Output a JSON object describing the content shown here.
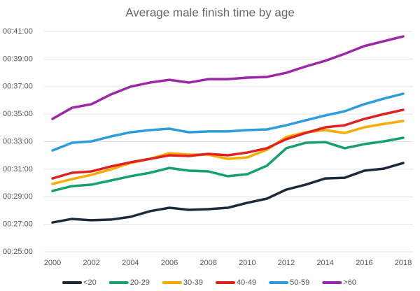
{
  "chart_data": {
    "type": "line",
    "title": "Average male finish time by age",
    "x": [
      2000,
      2001,
      2002,
      2003,
      2004,
      2005,
      2006,
      2007,
      2008,
      2009,
      2010,
      2011,
      2012,
      2013,
      2014,
      2015,
      2016,
      2017,
      2018
    ],
    "xlim": [
      2000,
      2018
    ],
    "xticks": [
      2000,
      2002,
      2004,
      2006,
      2008,
      2010,
      2012,
      2014,
      2016,
      2018
    ],
    "ylim": [
      25,
      41
    ],
    "yticks": [
      {
        "value": 25,
        "label": "00:25:00"
      },
      {
        "value": 27,
        "label": "00:27:00"
      },
      {
        "value": 29,
        "label": "00:29:00"
      },
      {
        "value": 31,
        "label": "00:31:00"
      },
      {
        "value": 33,
        "label": "00:33:00"
      },
      {
        "value": 35,
        "label": "00:35:00"
      },
      {
        "value": 37,
        "label": "00:37:00"
      },
      {
        "value": 39,
        "label": "00:39:00"
      },
      {
        "value": 41,
        "label": "00:41:00"
      }
    ],
    "grid": true,
    "legend": "bottom",
    "series": [
      {
        "name": "<20",
        "color": "#1c2b39",
        "values": [
          27.13,
          27.39,
          27.29,
          27.34,
          27.54,
          27.95,
          28.2,
          28.05,
          28.1,
          28.2,
          28.56,
          28.86,
          29.52,
          29.88,
          30.33,
          30.38,
          30.89,
          31.04,
          31.45
        ]
      },
      {
        "name": "20-29",
        "color": "#16a06c",
        "values": [
          29.42,
          29.77,
          29.88,
          30.18,
          30.49,
          30.74,
          31.09,
          30.89,
          30.84,
          30.49,
          30.64,
          31.25,
          32.52,
          32.92,
          32.97,
          32.52,
          32.82,
          33.02,
          33.28
        ]
      },
      {
        "name": "30-39",
        "color": "#f5ab00",
        "values": [
          29.93,
          30.28,
          30.59,
          30.99,
          31.45,
          31.75,
          32.16,
          32.06,
          32.06,
          31.75,
          31.86,
          32.41,
          33.33,
          33.68,
          33.84,
          33.63,
          34.04,
          34.29,
          34.5
        ]
      },
      {
        "name": "40-49",
        "color": "#e0211f",
        "values": [
          30.33,
          30.74,
          30.84,
          31.2,
          31.5,
          31.75,
          32.01,
          31.96,
          32.11,
          32.01,
          32.21,
          32.52,
          33.18,
          33.63,
          34.04,
          34.19,
          34.65,
          35.0,
          35.31
        ]
      },
      {
        "name": "50-59",
        "color": "#2d9ddc",
        "values": [
          32.36,
          32.92,
          33.02,
          33.38,
          33.68,
          33.84,
          33.94,
          33.68,
          33.74,
          33.74,
          33.84,
          33.89,
          34.19,
          34.55,
          34.9,
          35.21,
          35.72,
          36.12,
          36.48
        ]
      },
      {
        "name": ">60",
        "color": "#9c27a9",
        "values": [
          34.65,
          35.46,
          35.72,
          36.43,
          36.99,
          37.29,
          37.49,
          37.29,
          37.54,
          37.54,
          37.65,
          37.7,
          38.0,
          38.46,
          38.87,
          39.38,
          39.94,
          40.29,
          40.64
        ]
      }
    ]
  }
}
